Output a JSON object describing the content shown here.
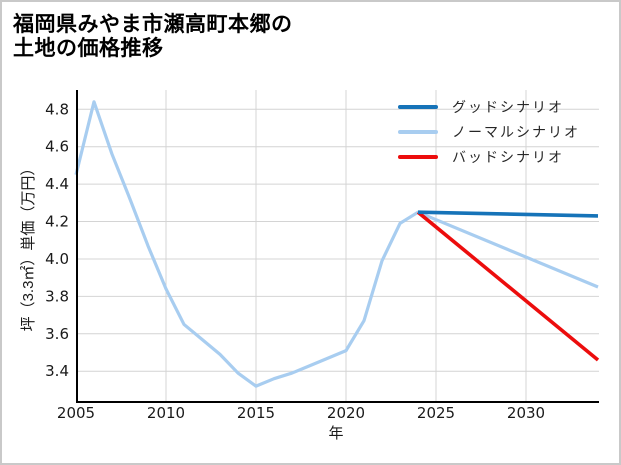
{
  "title": {
    "line1": "福岡県みやま市瀬高町本郷の",
    "line2": "土地の価格推移"
  },
  "chart_data": {
    "type": "line",
    "title": "福岡県みやま市瀬高町本郷の土地の価格推移",
    "xlabel": "年",
    "ylabel": "坪（3.3㎡）単価（万円）",
    "x_tick_years": [
      2005,
      2010,
      2015,
      2020,
      2025,
      2030
    ],
    "x_tick_labels": [
      "2005",
      "2010",
      "2015",
      "2020",
      "2025",
      "2030"
    ],
    "y_tick_values": [
      3.4,
      3.6,
      3.8,
      4.0,
      4.2,
      4.4,
      4.6,
      4.8
    ],
    "y_tick_labels": [
      "3.4",
      "3.6",
      "3.8",
      "4.0",
      "4.2",
      "4.4",
      "4.6",
      "4.8"
    ],
    "xlim": [
      2005,
      2034
    ],
    "ylim": [
      3.24,
      4.9
    ],
    "grid": true,
    "grid_color": "#d4d4d4",
    "axis_color": "#000000",
    "legend_position": "top-right-inside",
    "series": [
      {
        "name": "グッドシナリオ",
        "color": "#1673b8",
        "width": 3.6,
        "x": [
          2024,
          2034
        ],
        "values": [
          4.25,
          4.23
        ]
      },
      {
        "name": "ノーマルシナリオ",
        "color": "#a8cdf0",
        "width": 3.2,
        "x": [
          2005,
          2006,
          2007,
          2008,
          2009,
          2010,
          2011,
          2012,
          2013,
          2014,
          2015,
          2016,
          2017,
          2018,
          2019,
          2020,
          2021,
          2022,
          2023,
          2024,
          2034
        ],
        "values": [
          4.45,
          4.84,
          4.56,
          4.32,
          4.07,
          3.84,
          3.65,
          3.57,
          3.49,
          3.39,
          3.32,
          3.36,
          3.39,
          3.43,
          3.47,
          3.51,
          3.67,
          3.99,
          4.19,
          4.25,
          3.85
        ]
      },
      {
        "name": "バッドシナリオ",
        "color": "#ec0d0d",
        "width": 3.6,
        "x": [
          2024,
          2034
        ],
        "values": [
          4.25,
          3.46
        ]
      }
    ]
  }
}
